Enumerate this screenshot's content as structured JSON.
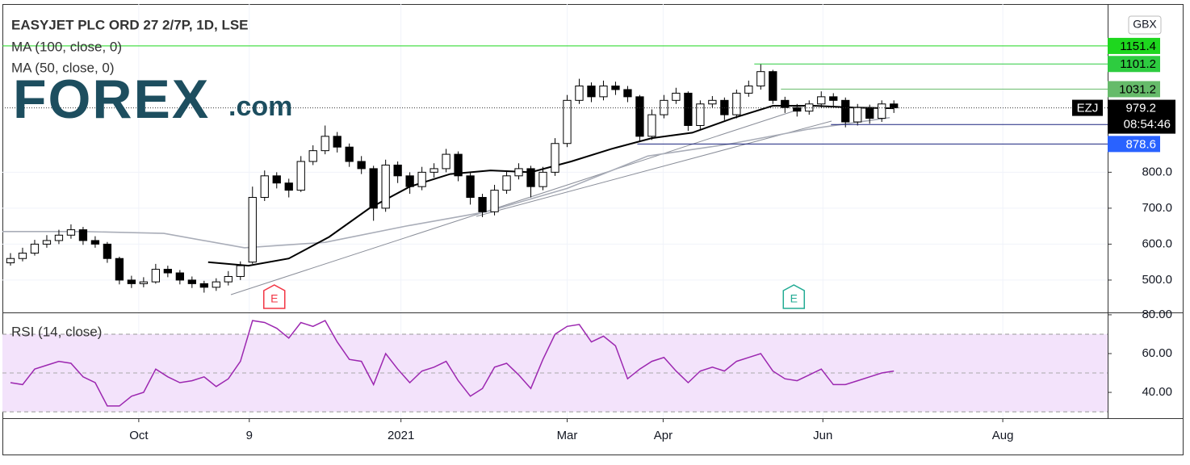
{
  "chart_data": [
    {
      "type": "candlestick",
      "title": "EASYJET PLC ORD 27 2/7P, 1D, LSE",
      "logo": {
        "brand": "FOREX",
        "suffix": ".com"
      },
      "currency": "GBX",
      "xlim": [
        0,
        274
      ],
      "ylim": [
        410,
        1268
      ],
      "yticks": [
        {
          "value": 500,
          "label": "500.0"
        },
        {
          "value": 600,
          "label": "600.0"
        },
        {
          "value": 700,
          "label": "700.0"
        },
        {
          "value": 800,
          "label": "800.0"
        }
      ],
      "grid": true,
      "up_color": "#ffffff",
      "down_color": "#000000",
      "border_color": "#000000",
      "x": [
        2,
        5,
        8,
        11,
        14,
        17,
        20,
        23,
        26,
        29,
        32,
        35,
        38,
        41,
        44,
        47,
        50,
        53,
        56,
        59,
        62,
        65,
        68,
        71,
        74,
        77,
        80,
        83,
        86,
        89,
        92,
        95,
        98,
        101,
        104,
        107,
        110,
        113,
        116,
        119,
        122,
        125,
        128,
        131,
        134,
        137,
        140,
        143,
        146,
        149,
        152,
        155,
        158,
        161,
        164,
        167,
        170,
        173,
        176,
        179,
        182,
        185,
        188,
        191,
        194,
        197,
        200,
        203,
        206,
        209,
        212,
        215,
        218,
        221
      ],
      "ohlc": [
        [
          548,
          575,
          540,
          560
        ],
        [
          560,
          590,
          552,
          575
        ],
        [
          575,
          612,
          568,
          600
        ],
        [
          600,
          625,
          590,
          610
        ],
        [
          610,
          640,
          600,
          625
        ],
        [
          625,
          655,
          615,
          640
        ],
        [
          640,
          648,
          598,
          610
        ],
        [
          610,
          622,
          590,
          600
        ],
        [
          600,
          606,
          548,
          560
        ],
        [
          560,
          565,
          488,
          500
        ],
        [
          500,
          512,
          478,
          490
        ],
        [
          490,
          508,
          480,
          495
        ],
        [
          495,
          545,
          490,
          530
        ],
        [
          530,
          540,
          508,
          520
        ],
        [
          520,
          528,
          488,
          500
        ],
        [
          500,
          510,
          478,
          490
        ],
        [
          490,
          498,
          465,
          480
        ],
        [
          480,
          505,
          470,
          495
        ],
        [
          495,
          525,
          485,
          510
        ],
        [
          510,
          552,
          500,
          540
        ],
        [
          550,
          760,
          545,
          730
        ],
        [
          730,
          805,
          720,
          790
        ],
        [
          790,
          800,
          755,
          770
        ],
        [
          770,
          782,
          730,
          750
        ],
        [
          750,
          845,
          745,
          830
        ],
        [
          830,
          875,
          820,
          860
        ],
        [
          860,
          930,
          850,
          900
        ],
        [
          900,
          912,
          855,
          870
        ],
        [
          870,
          880,
          815,
          830
        ],
        [
          830,
          845,
          795,
          810
        ],
        [
          810,
          818,
          665,
          700
        ],
        [
          700,
          835,
          690,
          820
        ],
        [
          820,
          830,
          770,
          790
        ],
        [
          790,
          800,
          740,
          760
        ],
        [
          760,
          815,
          750,
          800
        ],
        [
          800,
          825,
          785,
          810
        ],
        [
          810,
          865,
          800,
          850
        ],
        [
          850,
          858,
          775,
          790
        ],
        [
          790,
          798,
          710,
          730
        ],
        [
          730,
          740,
          675,
          690
        ],
        [
          690,
          765,
          680,
          750
        ],
        [
          750,
          805,
          740,
          790
        ],
        [
          790,
          825,
          780,
          810
        ],
        [
          810,
          818,
          730,
          760
        ],
        [
          760,
          815,
          750,
          800
        ],
        [
          800,
          895,
          790,
          880
        ],
        [
          880,
          1015,
          870,
          1000
        ],
        [
          1000,
          1060,
          990,
          1040
        ],
        [
          1040,
          1050,
          995,
          1010
        ],
        [
          1010,
          1055,
          1000,
          1040
        ],
        [
          1040,
          1052,
          1015,
          1030
        ],
        [
          1030,
          1040,
          995,
          1010
        ],
        [
          1010,
          1015,
          885,
          900
        ],
        [
          900,
          975,
          890,
          960
        ],
        [
          960,
          1015,
          950,
          1000
        ],
        [
          1000,
          1035,
          990,
          1020
        ],
        [
          1020,
          1025,
          915,
          930
        ],
        [
          930,
          1000,
          920,
          990
        ],
        [
          990,
          1012,
          980,
          1000
        ],
        [
          1000,
          1008,
          945,
          960
        ],
        [
          960,
          1030,
          950,
          1020
        ],
        [
          1020,
          1055,
          1010,
          1040
        ],
        [
          1040,
          1101,
          1030,
          1080
        ],
        [
          1080,
          1085,
          990,
          1000
        ],
        [
          1000,
          1010,
          965,
          980
        ],
        [
          980,
          990,
          955,
          970
        ],
        [
          970,
          1000,
          960,
          990
        ],
        [
          990,
          1025,
          980,
          1010
        ],
        [
          1010,
          1020,
          985,
          1000
        ],
        [
          1000,
          1008,
          925,
          940
        ],
        [
          940,
          990,
          930,
          980
        ],
        [
          980,
          988,
          935,
          950
        ],
        [
          950,
          1000,
          940,
          990
        ],
        [
          990,
          1000,
          965,
          979.2
        ]
      ],
      "series": [
        {
          "name": "MA (100, close, 0)",
          "color": "#a9adb8",
          "x": [
            0,
            20,
            40,
            60,
            80,
            100,
            120,
            140,
            160,
            180,
            200,
            220
          ],
          "values": [
            635,
            635,
            630,
            590,
            605,
            650,
            690,
            755,
            845,
            878,
            920,
            952
          ]
        },
        {
          "name": "MA (50, close, 0)",
          "color": "#000000",
          "x": [
            51,
            61,
            71,
            81,
            91,
            101,
            111,
            121,
            131,
            141,
            151,
            161,
            171,
            181,
            191,
            201,
            211,
            221
          ],
          "values": [
            550,
            540,
            560,
            620,
            700,
            760,
            795,
            805,
            800,
            830,
            865,
            895,
            910,
            950,
            985,
            985,
            980,
            978
          ]
        }
      ],
      "levels": [
        {
          "value": 1151.4,
          "x_start": 0,
          "color": "#1ed71e",
          "text_color": "#000000"
        },
        {
          "value": 1101.2,
          "x_start": 186.4,
          "color": "#2ecc40",
          "text_color": "#000000"
        },
        {
          "value": 1031.2,
          "x_start": 193,
          "color": "#66bb6a",
          "text_color": "#000000"
        },
        {
          "value": 932.8,
          "x_start": 205.4,
          "color": "#2962ff",
          "text_color": "#ffffff"
        },
        {
          "value": 878.6,
          "x_start": 157.4,
          "color": "#2962ff",
          "text_color": "#ffffff"
        }
      ],
      "last": {
        "symbol": "EZJ",
        "value": 979.2,
        "countdown": "08:54:46"
      },
      "events": [
        {
          "label": "E",
          "x": 67.4,
          "color": "#f23645"
        },
        {
          "label": "E",
          "x": 196.2,
          "color": "#22ab94"
        }
      ]
    },
    {
      "type": "line",
      "title": "RSI (14, close)",
      "xlim": [
        0,
        274
      ],
      "ylim": [
        26.7,
        80.8
      ],
      "yticks": [
        {
          "value": 80,
          "label": "80.00"
        },
        {
          "value": 60,
          "label": "60.00"
        },
        {
          "value": 40,
          "label": "40.00"
        }
      ],
      "band": [
        30,
        70
      ],
      "band_color": "#f3e3fb",
      "midline": 50,
      "xticks": [
        {
          "value": 33.8,
          "label": "Oct"
        },
        {
          "value": 61.2,
          "label": "9"
        },
        {
          "value": 98.8,
          "label": "2021"
        },
        {
          "value": 140,
          "label": "Mar"
        },
        {
          "value": 163.8,
          "label": "Apr"
        },
        {
          "value": 203.4,
          "label": "Jun"
        },
        {
          "value": 248,
          "label": "Aug"
        }
      ],
      "series": [
        {
          "color": "#9c27b0",
          "x": [
            2,
            5,
            8,
            11,
            14,
            17,
            20,
            23,
            26,
            29,
            32,
            35,
            38,
            41,
            44,
            47,
            50,
            53,
            56,
            59,
            62,
            65,
            68,
            71,
            74,
            77,
            80,
            83,
            86,
            89,
            92,
            95,
            98,
            101,
            104,
            107,
            110,
            113,
            116,
            119,
            122,
            125,
            128,
            131,
            134,
            137,
            140,
            143,
            146,
            149,
            152,
            155,
            158,
            161,
            164,
            167,
            170,
            173,
            176,
            179,
            182,
            185,
            188,
            191,
            194,
            197,
            200,
            203,
            206,
            209,
            212,
            215,
            218,
            221
          ],
          "values": [
            45,
            44,
            52,
            54,
            56,
            55,
            48,
            45,
            33,
            33,
            38,
            40,
            52,
            48,
            45,
            46,
            48,
            43,
            47,
            56,
            77,
            76,
            73,
            68,
            76,
            74,
            77,
            66,
            57,
            56,
            44,
            60,
            52,
            45,
            51,
            53,
            56,
            46,
            38,
            42,
            53,
            55,
            49,
            42,
            57,
            70,
            74,
            75,
            66,
            69,
            64,
            47,
            52,
            56,
            58,
            51,
            45,
            51,
            53,
            51,
            56,
            58,
            60,
            51,
            47,
            46,
            49,
            52,
            44,
            44,
            46,
            48,
            50,
            51
          ]
        }
      ]
    }
  ]
}
